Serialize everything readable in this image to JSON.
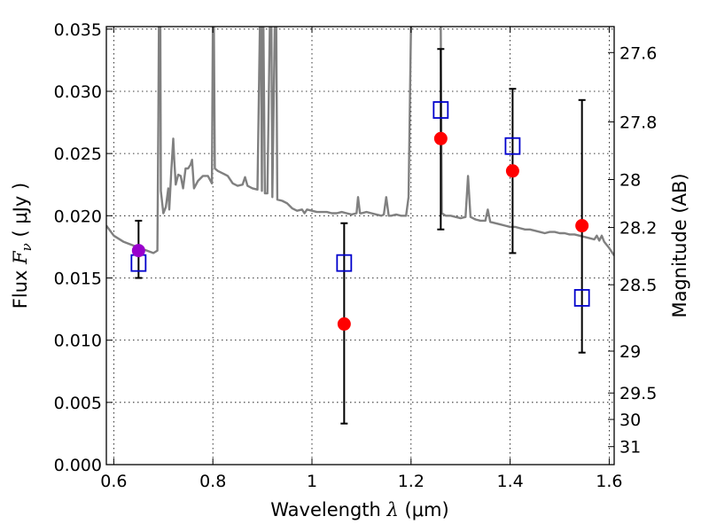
{
  "chart_data": {
    "type": "scatter",
    "xlabel": {
      "prefix": "Wavelength  ",
      "symbol": "λ",
      "unit": " (μm)"
    },
    "ylabel": {
      "prefix": "Flux  ",
      "symbol": "F",
      "sub": "ν",
      "unit": "  ( μJy )"
    },
    "y2label": "Magnitude (AB)",
    "xlim": [
      0.585,
      1.61
    ],
    "ylim": [
      0.0,
      0.0352
    ],
    "grid": true,
    "x_ticks": [
      {
        "v": 0.6,
        "label": "0.6"
      },
      {
        "v": 0.8,
        "label": "0.8"
      },
      {
        "v": 1.0,
        "label": "1"
      },
      {
        "v": 1.2,
        "label": "1.2"
      },
      {
        "v": 1.4,
        "label": "1.4"
      },
      {
        "v": 1.6,
        "label": "1.6"
      }
    ],
    "y_ticks": [
      {
        "v": 0.0,
        "label": "0.000"
      },
      {
        "v": 0.005,
        "label": "0.005"
      },
      {
        "v": 0.01,
        "label": "0.010"
      },
      {
        "v": 0.015,
        "label": "0.015"
      },
      {
        "v": 0.02,
        "label": "0.020"
      },
      {
        "v": 0.025,
        "label": "0.025"
      },
      {
        "v": 0.03,
        "label": "0.030"
      },
      {
        "v": 0.035,
        "label": "0.035"
      }
    ],
    "mag_ticks": [
      {
        "v": 27.6,
        "label": "27.6"
      },
      {
        "v": 27.8,
        "label": "27.8"
      },
      {
        "v": 28.0,
        "label": "28"
      },
      {
        "v": 28.2,
        "label": "28.2"
      },
      {
        "v": 28.5,
        "label": "28.5"
      },
      {
        "v": 29.0,
        "label": "29"
      },
      {
        "v": 29.5,
        "label": "29.5"
      },
      {
        "v": 30.0,
        "label": "30"
      },
      {
        "v": 31.0,
        "label": "31"
      }
    ],
    "series": [
      {
        "kind": "line",
        "color": "#808080",
        "points": [
          [
            0.585,
            0.0192
          ],
          [
            0.6,
            0.0184
          ],
          [
            0.62,
            0.0179
          ],
          [
            0.64,
            0.0176
          ],
          [
            0.66,
            0.0173
          ],
          [
            0.68,
            0.017
          ],
          [
            0.688,
            0.0172
          ],
          [
            0.69,
            0.028
          ],
          [
            0.691,
            0.0355
          ],
          [
            0.694,
            0.0355
          ],
          [
            0.695,
            0.022
          ],
          [
            0.7,
            0.0202
          ],
          [
            0.705,
            0.0207
          ],
          [
            0.71,
            0.0222
          ],
          [
            0.712,
            0.0205
          ],
          [
            0.716,
            0.0235
          ],
          [
            0.72,
            0.0262
          ],
          [
            0.722,
            0.0245
          ],
          [
            0.725,
            0.0225
          ],
          [
            0.73,
            0.0233
          ],
          [
            0.735,
            0.0232
          ],
          [
            0.74,
            0.0222
          ],
          [
            0.745,
            0.0238
          ],
          [
            0.75,
            0.0238
          ],
          [
            0.755,
            0.0241
          ],
          [
            0.758,
            0.0245
          ],
          [
            0.762,
            0.0222
          ],
          [
            0.77,
            0.0228
          ],
          [
            0.78,
            0.0232
          ],
          [
            0.79,
            0.0232
          ],
          [
            0.798,
            0.0226
          ],
          [
            0.8,
            0.0355
          ],
          [
            0.802,
            0.0355
          ],
          [
            0.804,
            0.0238
          ],
          [
            0.81,
            0.0236
          ],
          [
            0.82,
            0.0234
          ],
          [
            0.83,
            0.0232
          ],
          [
            0.84,
            0.0226
          ],
          [
            0.85,
            0.0224
          ],
          [
            0.86,
            0.0225
          ],
          [
            0.865,
            0.0231
          ],
          [
            0.87,
            0.0224
          ],
          [
            0.88,
            0.0222
          ],
          [
            0.89,
            0.0221
          ],
          [
            0.895,
            0.0355
          ],
          [
            0.897,
            0.0355
          ],
          [
            0.899,
            0.022
          ],
          [
            0.9,
            0.0355
          ],
          [
            0.902,
            0.0355
          ],
          [
            0.905,
            0.0218
          ],
          [
            0.91,
            0.0218
          ],
          [
            0.915,
            0.0355
          ],
          [
            0.918,
            0.0355
          ],
          [
            0.92,
            0.0215
          ],
          [
            0.925,
            0.0355
          ],
          [
            0.928,
            0.0355
          ],
          [
            0.93,
            0.0213
          ],
          [
            0.94,
            0.0212
          ],
          [
            0.95,
            0.021
          ],
          [
            0.96,
            0.0206
          ],
          [
            0.97,
            0.0204
          ],
          [
            0.98,
            0.0205
          ],
          [
            0.985,
            0.0202
          ],
          [
            0.99,
            0.0205
          ],
          [
            1.0,
            0.0204
          ],
          [
            1.01,
            0.0203
          ],
          [
            1.02,
            0.0203
          ],
          [
            1.03,
            0.0203
          ],
          [
            1.04,
            0.0202
          ],
          [
            1.05,
            0.0202
          ],
          [
            1.06,
            0.0203
          ],
          [
            1.07,
            0.0202
          ],
          [
            1.08,
            0.0201
          ],
          [
            1.09,
            0.0202
          ],
          [
            1.093,
            0.0215
          ],
          [
            1.097,
            0.0202
          ],
          [
            1.1,
            0.0202
          ],
          [
            1.11,
            0.0203
          ],
          [
            1.12,
            0.0202
          ],
          [
            1.13,
            0.0201
          ],
          [
            1.14,
            0.02
          ],
          [
            1.145,
            0.0201
          ],
          [
            1.15,
            0.0215
          ],
          [
            1.155,
            0.02
          ],
          [
            1.16,
            0.02
          ],
          [
            1.17,
            0.0201
          ],
          [
            1.18,
            0.02
          ],
          [
            1.19,
            0.02
          ],
          [
            1.195,
            0.0215
          ],
          [
            1.198,
            0.03
          ],
          [
            1.2,
            0.0355
          ],
          [
            1.21,
            0.0355
          ],
          [
            1.25,
            0.0355
          ],
          [
            1.26,
            0.0355
          ],
          [
            1.262,
            0.0202
          ],
          [
            1.27,
            0.02
          ],
          [
            1.28,
            0.02
          ],
          [
            1.29,
            0.0199
          ],
          [
            1.3,
            0.0198
          ],
          [
            1.31,
            0.0199
          ],
          [
            1.315,
            0.0232
          ],
          [
            1.32,
            0.0199
          ],
          [
            1.33,
            0.0197
          ],
          [
            1.34,
            0.0196
          ],
          [
            1.35,
            0.0196
          ],
          [
            1.355,
            0.0205
          ],
          [
            1.36,
            0.0195
          ],
          [
            1.37,
            0.0194
          ],
          [
            1.38,
            0.0193
          ],
          [
            1.39,
            0.0192
          ],
          [
            1.4,
            0.0191
          ],
          [
            1.41,
            0.0191
          ],
          [
            1.42,
            0.019
          ],
          [
            1.43,
            0.0189
          ],
          [
            1.44,
            0.0189
          ],
          [
            1.45,
            0.0188
          ],
          [
            1.46,
            0.0187
          ],
          [
            1.47,
            0.0186
          ],
          [
            1.48,
            0.0187
          ],
          [
            1.49,
            0.0187
          ],
          [
            1.5,
            0.0186
          ],
          [
            1.51,
            0.0186
          ],
          [
            1.52,
            0.0185
          ],
          [
            1.53,
            0.0185
          ],
          [
            1.54,
            0.0184
          ],
          [
            1.55,
            0.0183
          ],
          [
            1.56,
            0.0182
          ],
          [
            1.57,
            0.0181
          ],
          [
            1.575,
            0.0184
          ],
          [
            1.58,
            0.018
          ],
          [
            1.585,
            0.0184
          ],
          [
            1.59,
            0.0179
          ],
          [
            1.6,
            0.0174
          ],
          [
            1.61,
            0.0168
          ]
        ]
      },
      {
        "kind": "errorbar",
        "color": "#000000",
        "points": [
          {
            "x": 0.65,
            "lo": 0.015,
            "hi": 0.0196
          },
          {
            "x": 1.065,
            "lo": 0.0033,
            "hi": 0.0194
          },
          {
            "x": 1.26,
            "lo": 0.0189,
            "hi": 0.0334
          },
          {
            "x": 1.405,
            "lo": 0.017,
            "hi": 0.0302
          },
          {
            "x": 1.545,
            "lo": 0.009,
            "hi": 0.0293
          }
        ]
      },
      {
        "kind": "square",
        "color": "#0000cc",
        "points": [
          [
            0.65,
            0.0162
          ],
          [
            1.065,
            0.0162
          ],
          [
            1.26,
            0.0285
          ],
          [
            1.405,
            0.0256
          ],
          [
            1.545,
            0.0134
          ]
        ]
      },
      {
        "kind": "dot",
        "color": "#ff0000",
        "points": [
          [
            1.065,
            0.0113
          ],
          [
            1.26,
            0.0262
          ],
          [
            1.405,
            0.0236
          ],
          [
            1.545,
            0.0192
          ]
        ]
      },
      {
        "kind": "dot",
        "color": "#9900cc",
        "points": [
          [
            0.65,
            0.0172
          ]
        ]
      }
    ]
  }
}
